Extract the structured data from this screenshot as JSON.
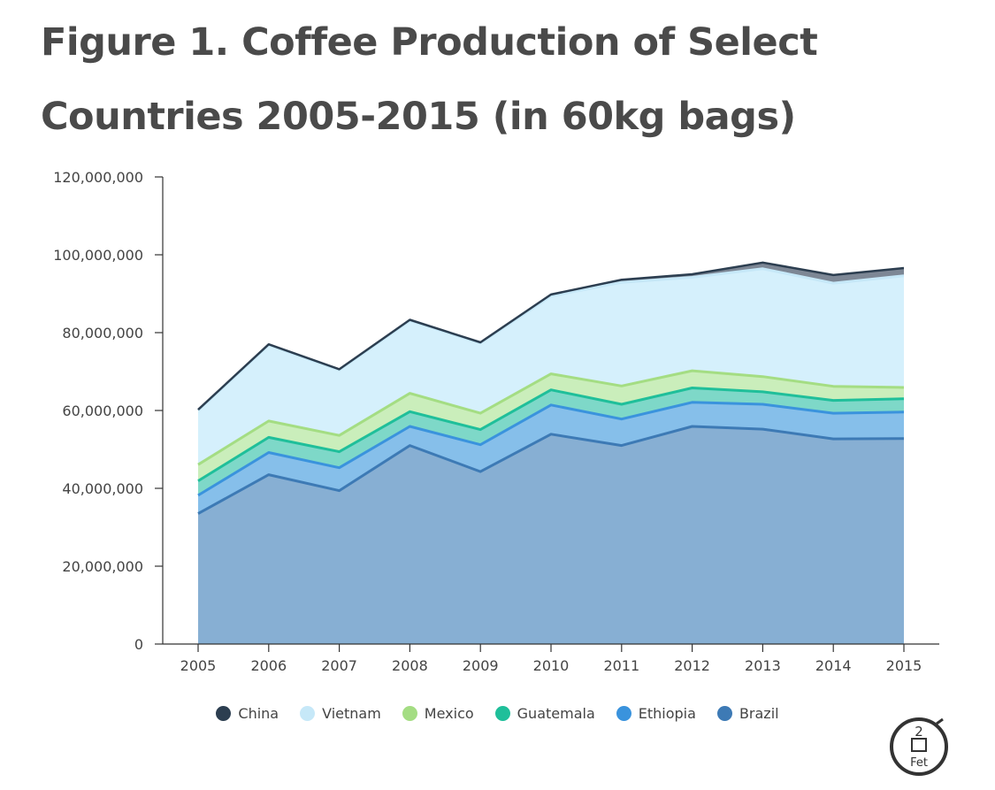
{
  "title": "Figure 1. Coffee Production of Select Countries 2005-2015 (in 60kg bags)",
  "chart_data": {
    "type": "area",
    "stacked": true,
    "title": "Figure 1. Coffee Production of Select Countries 2005-2015 (in 60kg bags)",
    "xlabel": "",
    "ylabel": "",
    "x": [
      "2005",
      "2006",
      "2007",
      "2008",
      "2009",
      "2010",
      "2011",
      "2012",
      "2013",
      "2014",
      "2015"
    ],
    "ylim": [
      0,
      120000000
    ],
    "yticks": [
      0,
      20000000,
      40000000,
      60000000,
      80000000,
      100000000,
      120000000
    ],
    "ytick_labels": [
      "0",
      "20,000,000",
      "40,000,000",
      "60,000,000",
      "80,000,000",
      "100,000,000",
      "120,000,000"
    ],
    "grid": false,
    "legend_position": "bottom",
    "stack_order": [
      "Brazil",
      "Ethiopia",
      "Guatemala",
      "Mexico",
      "Vietnam",
      "China"
    ],
    "series": [
      {
        "name": "Brazil",
        "color": "#3d7ab5",
        "fill": "#87afd3",
        "values": [
          33500000,
          43500000,
          39400000,
          51000000,
          44300000,
          53900000,
          51000000,
          55900000,
          55200000,
          52700000,
          52800000
        ]
      },
      {
        "name": "Ethiopia",
        "color": "#3a93dd",
        "fill": "#86bfea",
        "values": [
          4700000,
          5700000,
          5900000,
          4900000,
          6900000,
          7500000,
          6800000,
          6200000,
          6400000,
          6600000,
          6800000
        ]
      },
      {
        "name": "Guatemala",
        "color": "#1fbf9a",
        "fill": "#7ed8c8",
        "values": [
          3700000,
          3900000,
          4100000,
          3800000,
          3900000,
          3900000,
          3800000,
          3700000,
          3200000,
          3300000,
          3400000
        ]
      },
      {
        "name": "Mexico",
        "color": "#a4dd83",
        "fill": "#caeebb",
        "values": [
          4200000,
          4200000,
          4200000,
          4700000,
          4200000,
          4100000,
          4700000,
          4400000,
          3900000,
          3600000,
          2900000
        ]
      },
      {
        "name": "Vietnam",
        "color": "#c6e8f8",
        "fill": "#d5f0fc",
        "values": [
          13900000,
          19500000,
          16800000,
          18700000,
          18000000,
          20000000,
          26600000,
          24000000,
          27700000,
          26500000,
          28700000
        ]
      },
      {
        "name": "China",
        "color": "#2c3e50",
        "fill": "#7d8795",
        "values": [
          200000,
          200000,
          200000,
          200000,
          200000,
          400000,
          700000,
          800000,
          1600000,
          2100000,
          2000000
        ]
      }
    ]
  },
  "legend": [
    {
      "label": "China",
      "color": "#2c3e50"
    },
    {
      "label": "Vietnam",
      "color": "#c6e8f8"
    },
    {
      "label": "Mexico",
      "color": "#a4dd83"
    },
    {
      "label": "Guatemala",
      "color": "#1fbf9a"
    },
    {
      "label": "Ethiopia",
      "color": "#3a93dd"
    },
    {
      "label": "Brazil",
      "color": "#3d7ab5"
    }
  ],
  "logo": {
    "icon": "2foot-logo-icon",
    "text_top": "2",
    "text_bottom": "Fet"
  }
}
